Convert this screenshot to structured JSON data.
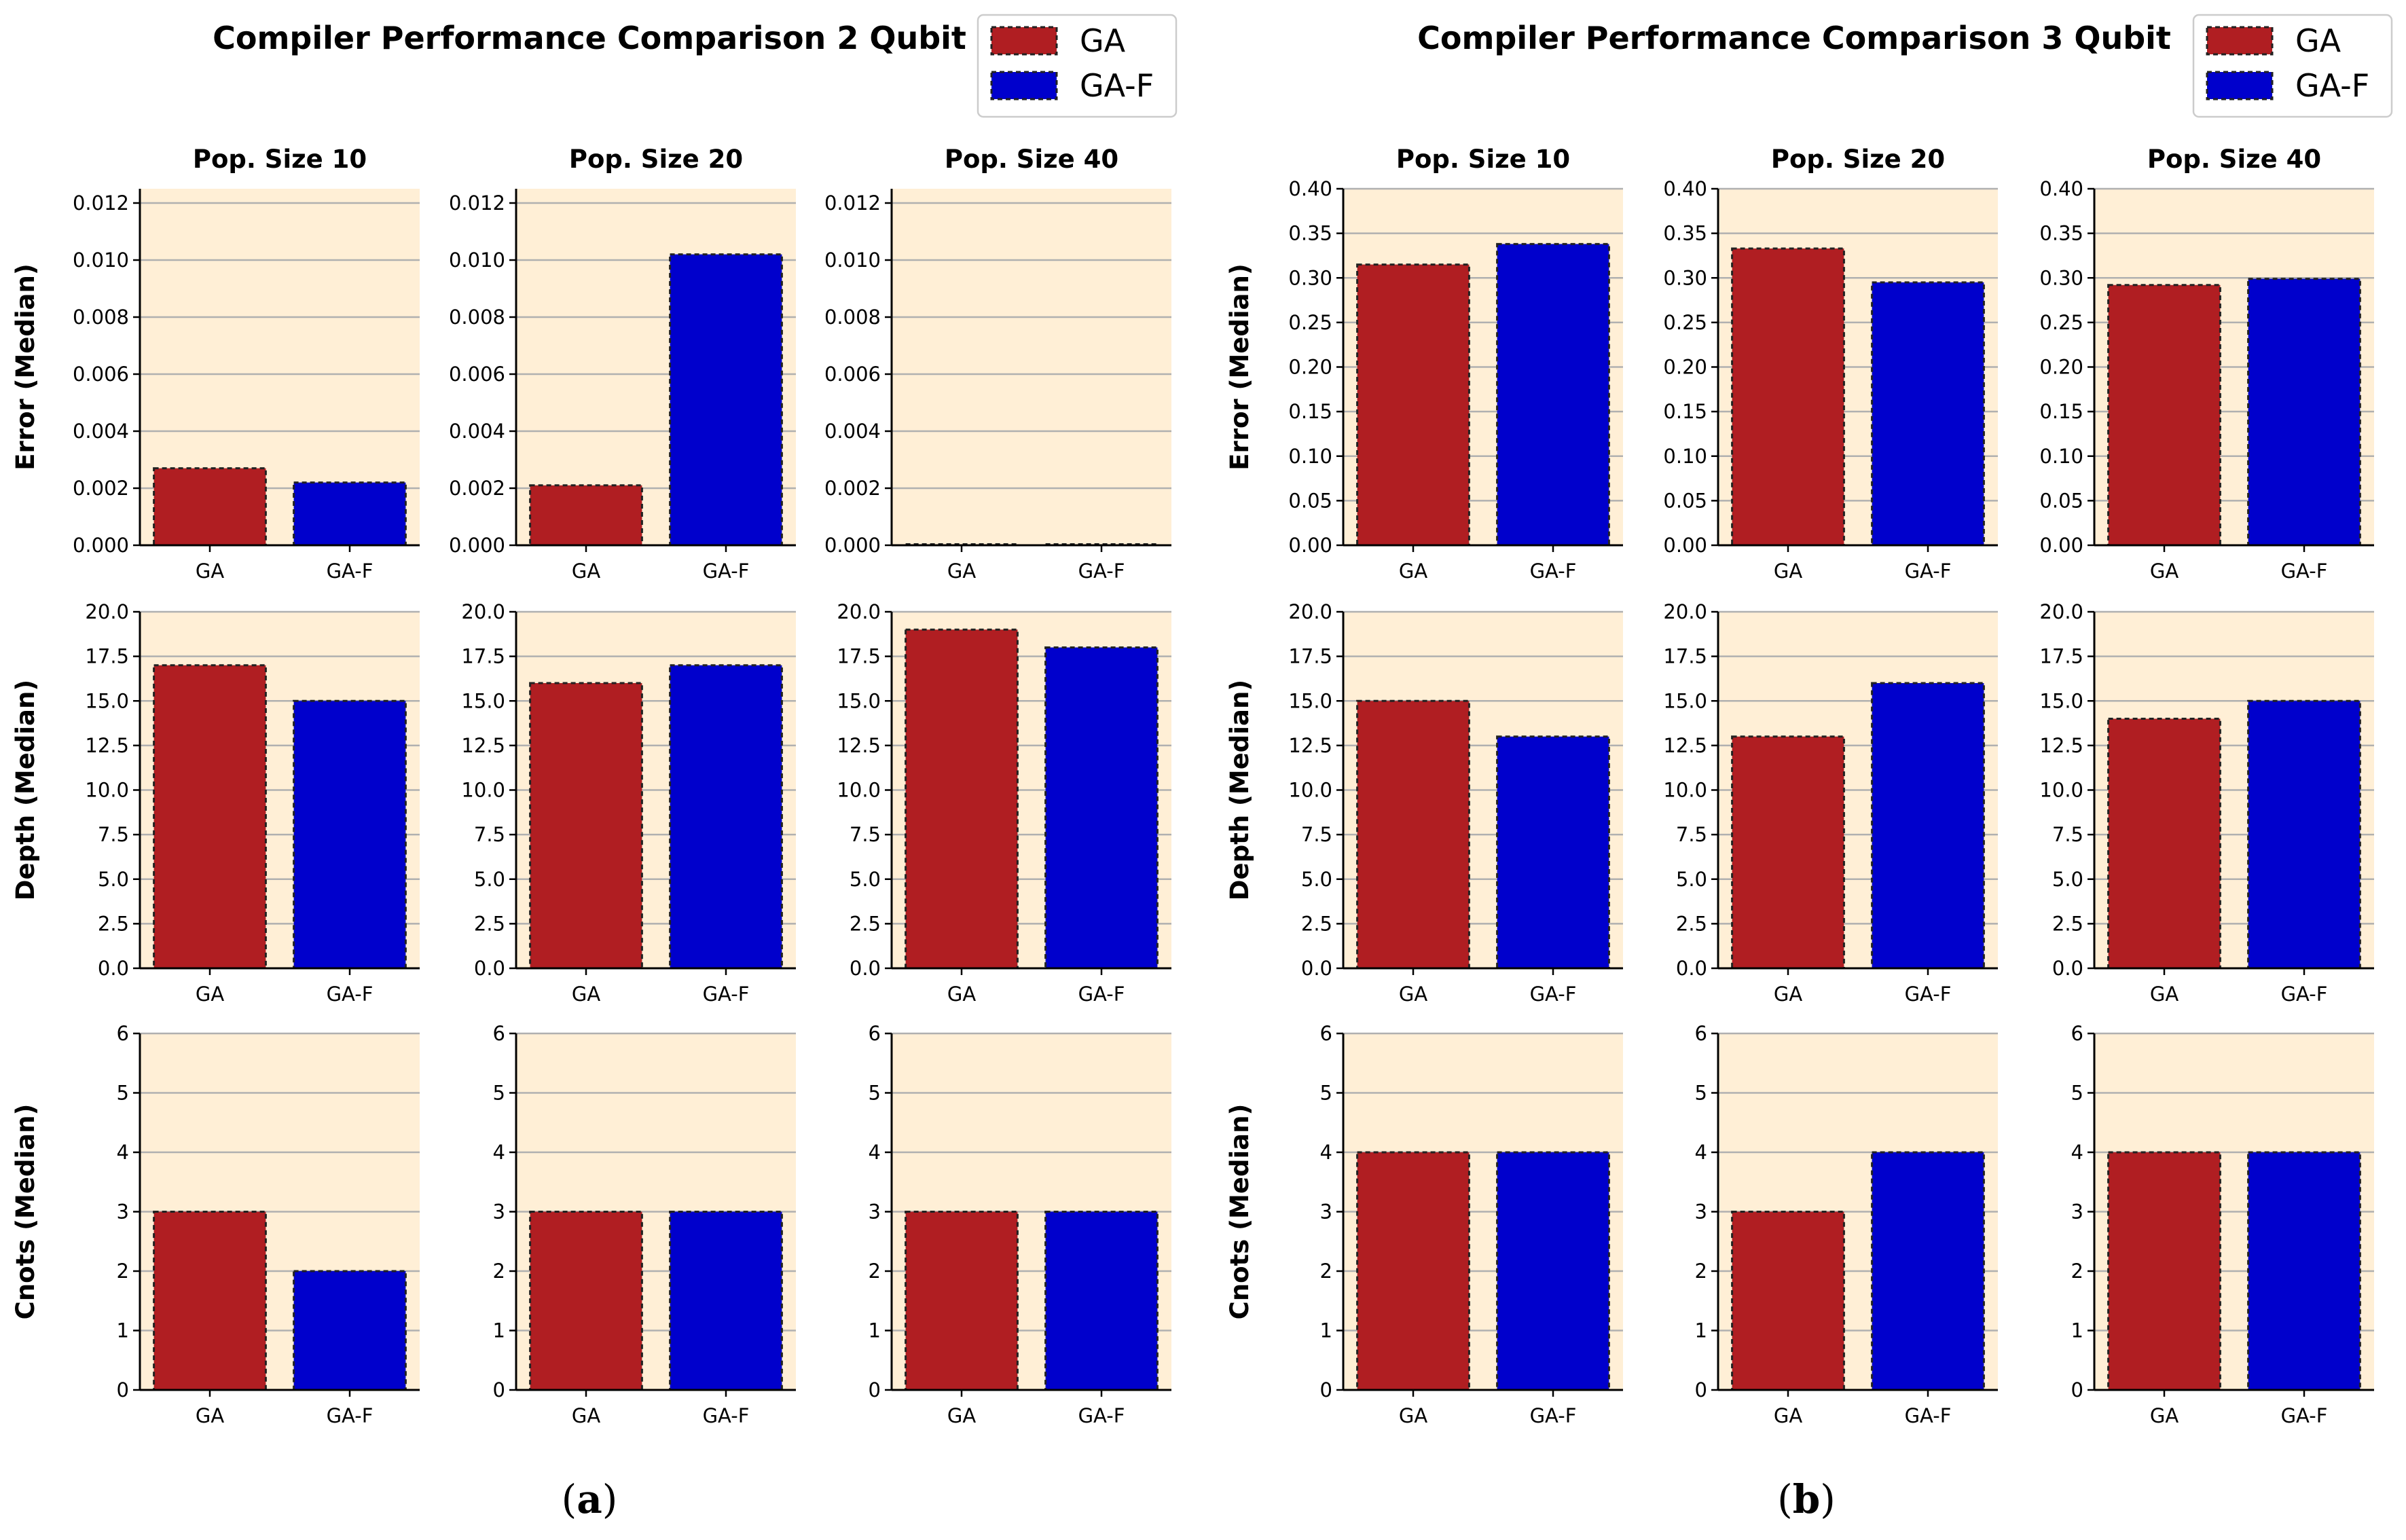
{
  "colors": {
    "GA": "#b01e22",
    "GA-F": "#0000cc",
    "plot_bg": "#ffefd6",
    "grid": "#b0b0b0"
  },
  "legend": [
    "GA",
    "GA-F"
  ],
  "captions": [
    "a",
    "b"
  ],
  "chart_data": [
    {
      "type": "bar",
      "title": "Compiler Performance Comparison 2 Qubit",
      "caption": "a",
      "subplot_titles": [
        "Pop. Size 10",
        "Pop. Size 20",
        "Pop. Size 40"
      ],
      "categories": [
        "GA",
        "GA-F"
      ],
      "rows": [
        {
          "ylabel": "Error (Median)",
          "ylim": [
            0,
            0.0125
          ],
          "yticks": [
            "0.000",
            "0.002",
            "0.004",
            "0.006",
            "0.008",
            "0.010",
            "0.012"
          ],
          "values": [
            [
              0.0027,
              0.0022
            ],
            [
              0.0021,
              0.0102
            ],
            [
              2e-05,
              2e-05
            ]
          ]
        },
        {
          "ylabel": "Depth (Median)",
          "ylim": [
            0,
            20
          ],
          "yticks": [
            "0.0",
            "2.5",
            "5.0",
            "7.5",
            "10.0",
            "12.5",
            "15.0",
            "17.5",
            "20.0"
          ],
          "values": [
            [
              17,
              15
            ],
            [
              16,
              17
            ],
            [
              19,
              18
            ]
          ]
        },
        {
          "ylabel": "Cnots (Median)",
          "ylim": [
            0,
            6
          ],
          "yticks": [
            "0",
            "1",
            "2",
            "3",
            "4",
            "5",
            "6"
          ],
          "values": [
            [
              3,
              2
            ],
            [
              3,
              3
            ],
            [
              3,
              3
            ]
          ]
        }
      ]
    },
    {
      "type": "bar",
      "title": "Compiler Performance Comparison 3 Qubit",
      "caption": "b",
      "subplot_titles": [
        "Pop. Size 10",
        "Pop. Size 20",
        "Pop. Size 40"
      ],
      "categories": [
        "GA",
        "GA-F"
      ],
      "rows": [
        {
          "ylabel": "Error (Median)",
          "ylim": [
            0,
            0.4
          ],
          "yticks": [
            "0.00",
            "0.05",
            "0.10",
            "0.15",
            "0.20",
            "0.25",
            "0.30",
            "0.35",
            "0.40"
          ],
          "values": [
            [
              0.315,
              0.338
            ],
            [
              0.333,
              0.295
            ],
            [
              0.292,
              0.299
            ]
          ]
        },
        {
          "ylabel": "Depth (Median)",
          "ylim": [
            0,
            20
          ],
          "yticks": [
            "0.0",
            "2.5",
            "5.0",
            "7.5",
            "10.0",
            "12.5",
            "15.0",
            "17.5",
            "20.0"
          ],
          "values": [
            [
              15,
              13
            ],
            [
              13,
              16
            ],
            [
              14,
              15
            ]
          ]
        },
        {
          "ylabel": "Cnots (Median)",
          "ylim": [
            0,
            6
          ],
          "yticks": [
            "0",
            "1",
            "2",
            "3",
            "4",
            "5",
            "6"
          ],
          "values": [
            [
              4,
              4
            ],
            [
              3,
              4
            ],
            [
              4,
              4
            ]
          ]
        }
      ]
    }
  ]
}
